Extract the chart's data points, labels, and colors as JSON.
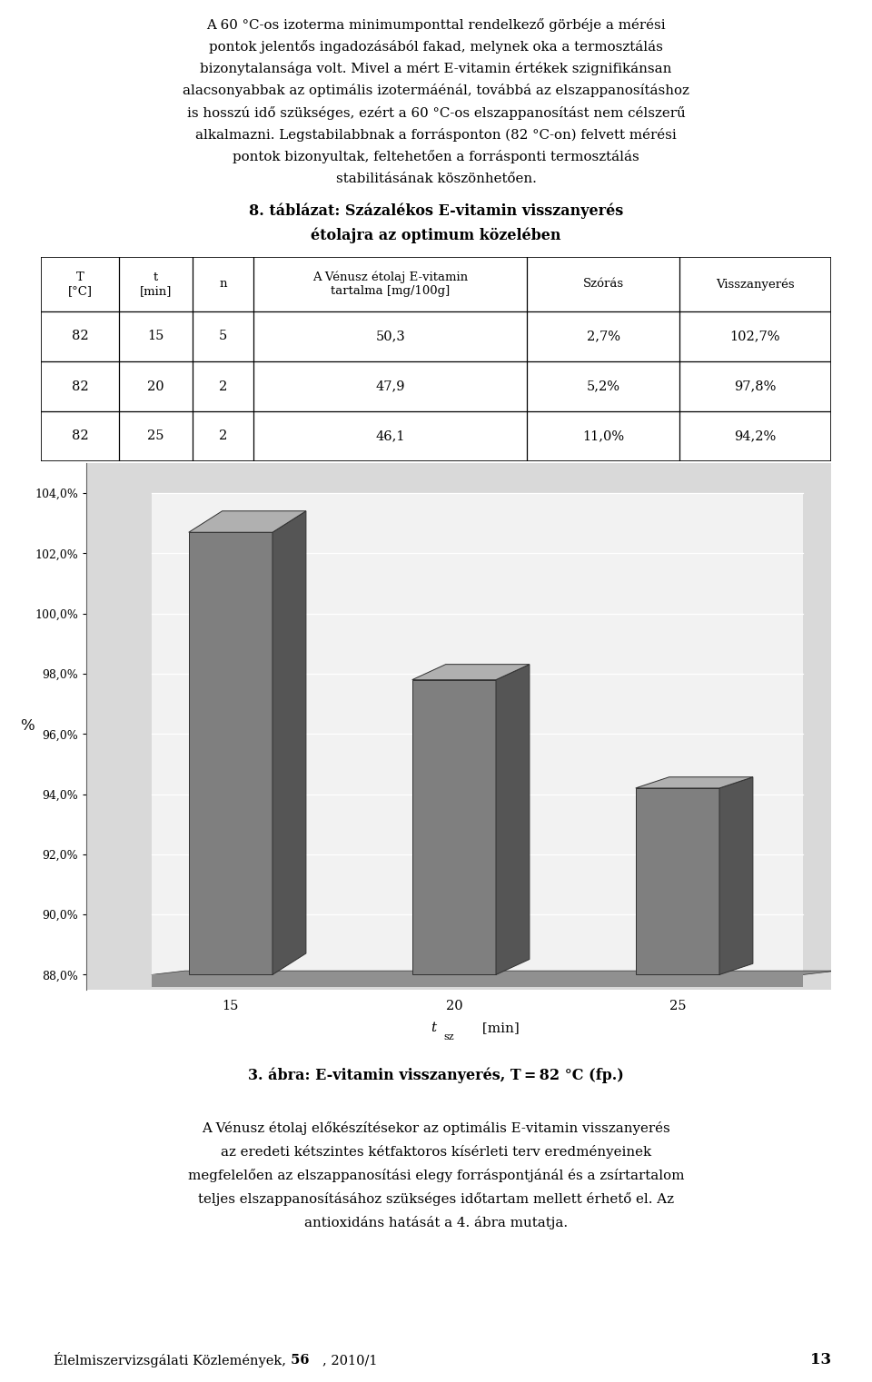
{
  "page_width": 9.6,
  "page_height": 15.22,
  "background_color": "#ffffff",
  "text_color": "#000000",
  "lines_p1": [
    "A 60 °C-os izoterma minimumponttal rendelkező görbéje a mérési",
    "pontok jelentős ingadozásából fakad, melynek oka a termosztálás",
    "bizonytalansága volt. Mivel a mért E-vitamin értékek szignifikánsan",
    "alacsonyabbak az optimális izotermáénál, továbbá az elszappanosításhoz",
    "is hosszú idő szükséges, ezért a 60 °C-os elszappanosítást nem célszerű",
    "alkalmazni. Legstabilabbnak a forrásponton (82 °C-on) felvett mérési",
    "pontok bizonyultak, feltehetően a forrásponti termosztálás",
    "stabilitásának köszönhetően."
  ],
  "table_title_line1": "8. táblázat: Százalékos E-vitamin visszanyerés",
  "table_title_line2": "étolajra az optimum közelében",
  "table_headers": [
    "T\n[°C]",
    "t\n[min]",
    "n",
    "A Vénusz étolaj E-vitamin\ntartalma [mg/100g]",
    "Szórás",
    "Visszanyerés"
  ],
  "table_data": [
    [
      "82",
      "15",
      "5",
      "50,3",
      "2,7%",
      "102,7%"
    ],
    [
      "82",
      "20",
      "2",
      "47,9",
      "5,2%",
      "97,8%"
    ],
    [
      "82",
      "25",
      "2",
      "46,1",
      "11,0%",
      "94,2%"
    ]
  ],
  "col_widths": [
    0.9,
    0.85,
    0.7,
    3.15,
    1.75,
    1.75
  ],
  "chart_categories": [
    "15",
    "20",
    "25"
  ],
  "chart_values": [
    102.7,
    97.8,
    94.2
  ],
  "chart_bar_color_front": "#7f7f7f",
  "chart_bar_color_top": "#b0b0b0",
  "chart_bar_color_side": "#555555",
  "chart_floor_color": "#909090",
  "chart_bg_outer": "#d9d9d9",
  "chart_bg_inner": "#f2f2f2",
  "chart_ylabel": "%",
  "chart_ylim_min": 88.0,
  "chart_ylim_max": 104.0,
  "chart_yticks": [
    88.0,
    90.0,
    92.0,
    94.0,
    96.0,
    98.0,
    100.0,
    102.0,
    104.0
  ],
  "chart_ytick_labels": [
    "88,0%",
    "90,0%",
    "92,0%",
    "94,0%",
    "96,0%",
    "98,0%",
    "100,0%",
    "102,0%",
    "104,0%"
  ],
  "figure_caption": "3. ábra: E-vitamin visszanyerés, T = 82 °C (fp.)",
  "lines_p2": [
    "A Vénusz étolaj előkészítésekor az optimális E-vitamin visszanyerés",
    "az eredeti kétszintes kétfaktoros kísérleti terv eredményeinek",
    "megfelelően az elszappanosítási elegy forráspontjánál és a zsírtartalom",
    "teljes elszappanosításához szükséges időtartam mellett érhető el. Az",
    "antioxidáns hatását a 4. ábra mutatja."
  ],
  "footer_text": "Élelmiszervizsgálati Közlemények,",
  "footer_bold": "56",
  "footer_year": ", 2010/1",
  "footer_page": "13"
}
